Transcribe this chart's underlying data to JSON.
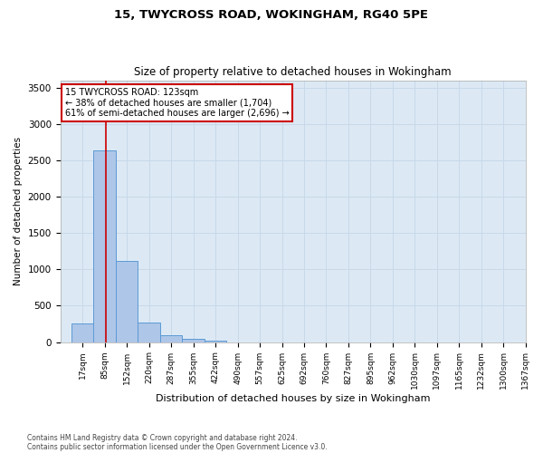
{
  "title1": "15, TWYCROSS ROAD, WOKINGHAM, RG40 5PE",
  "title2": "Size of property relative to detached houses in Wokingham",
  "xlabel": "Distribution of detached houses by size in Wokingham",
  "ylabel": "Number of detached properties",
  "footnote1": "Contains HM Land Registry data © Crown copyright and database right 2024.",
  "footnote2": "Contains public sector information licensed under the Open Government Licence v3.0.",
  "bar_edges": [
    17,
    85,
    152,
    220,
    287,
    355,
    422,
    490,
    557,
    625,
    692,
    760,
    827,
    895,
    962,
    1030,
    1097,
    1165,
    1232,
    1300,
    1367
  ],
  "bar_heights": [
    260,
    2630,
    1120,
    270,
    95,
    45,
    15,
    0,
    0,
    0,
    0,
    0,
    0,
    0,
    0,
    0,
    0,
    0,
    0,
    0
  ],
  "bar_color": "#aec6e8",
  "bar_edge_color": "#5b9bd5",
  "property_line_x": 123,
  "property_line_color": "#cc0000",
  "annotation_line1": "15 TWYCROSS ROAD: 123sqm",
  "annotation_line2": "← 38% of detached houses are smaller (1,704)",
  "annotation_line3": "61% of semi-detached houses are larger (2,696) →",
  "annotation_box_color": "#ffffff",
  "annotation_box_edge_color": "#cc0000",
  "ylim": [
    0,
    3600
  ],
  "yticks": [
    0,
    500,
    1000,
    1500,
    2000,
    2500,
    3000,
    3500
  ],
  "grid_color": "#c8d8e8",
  "plot_background": "#dce9f5"
}
